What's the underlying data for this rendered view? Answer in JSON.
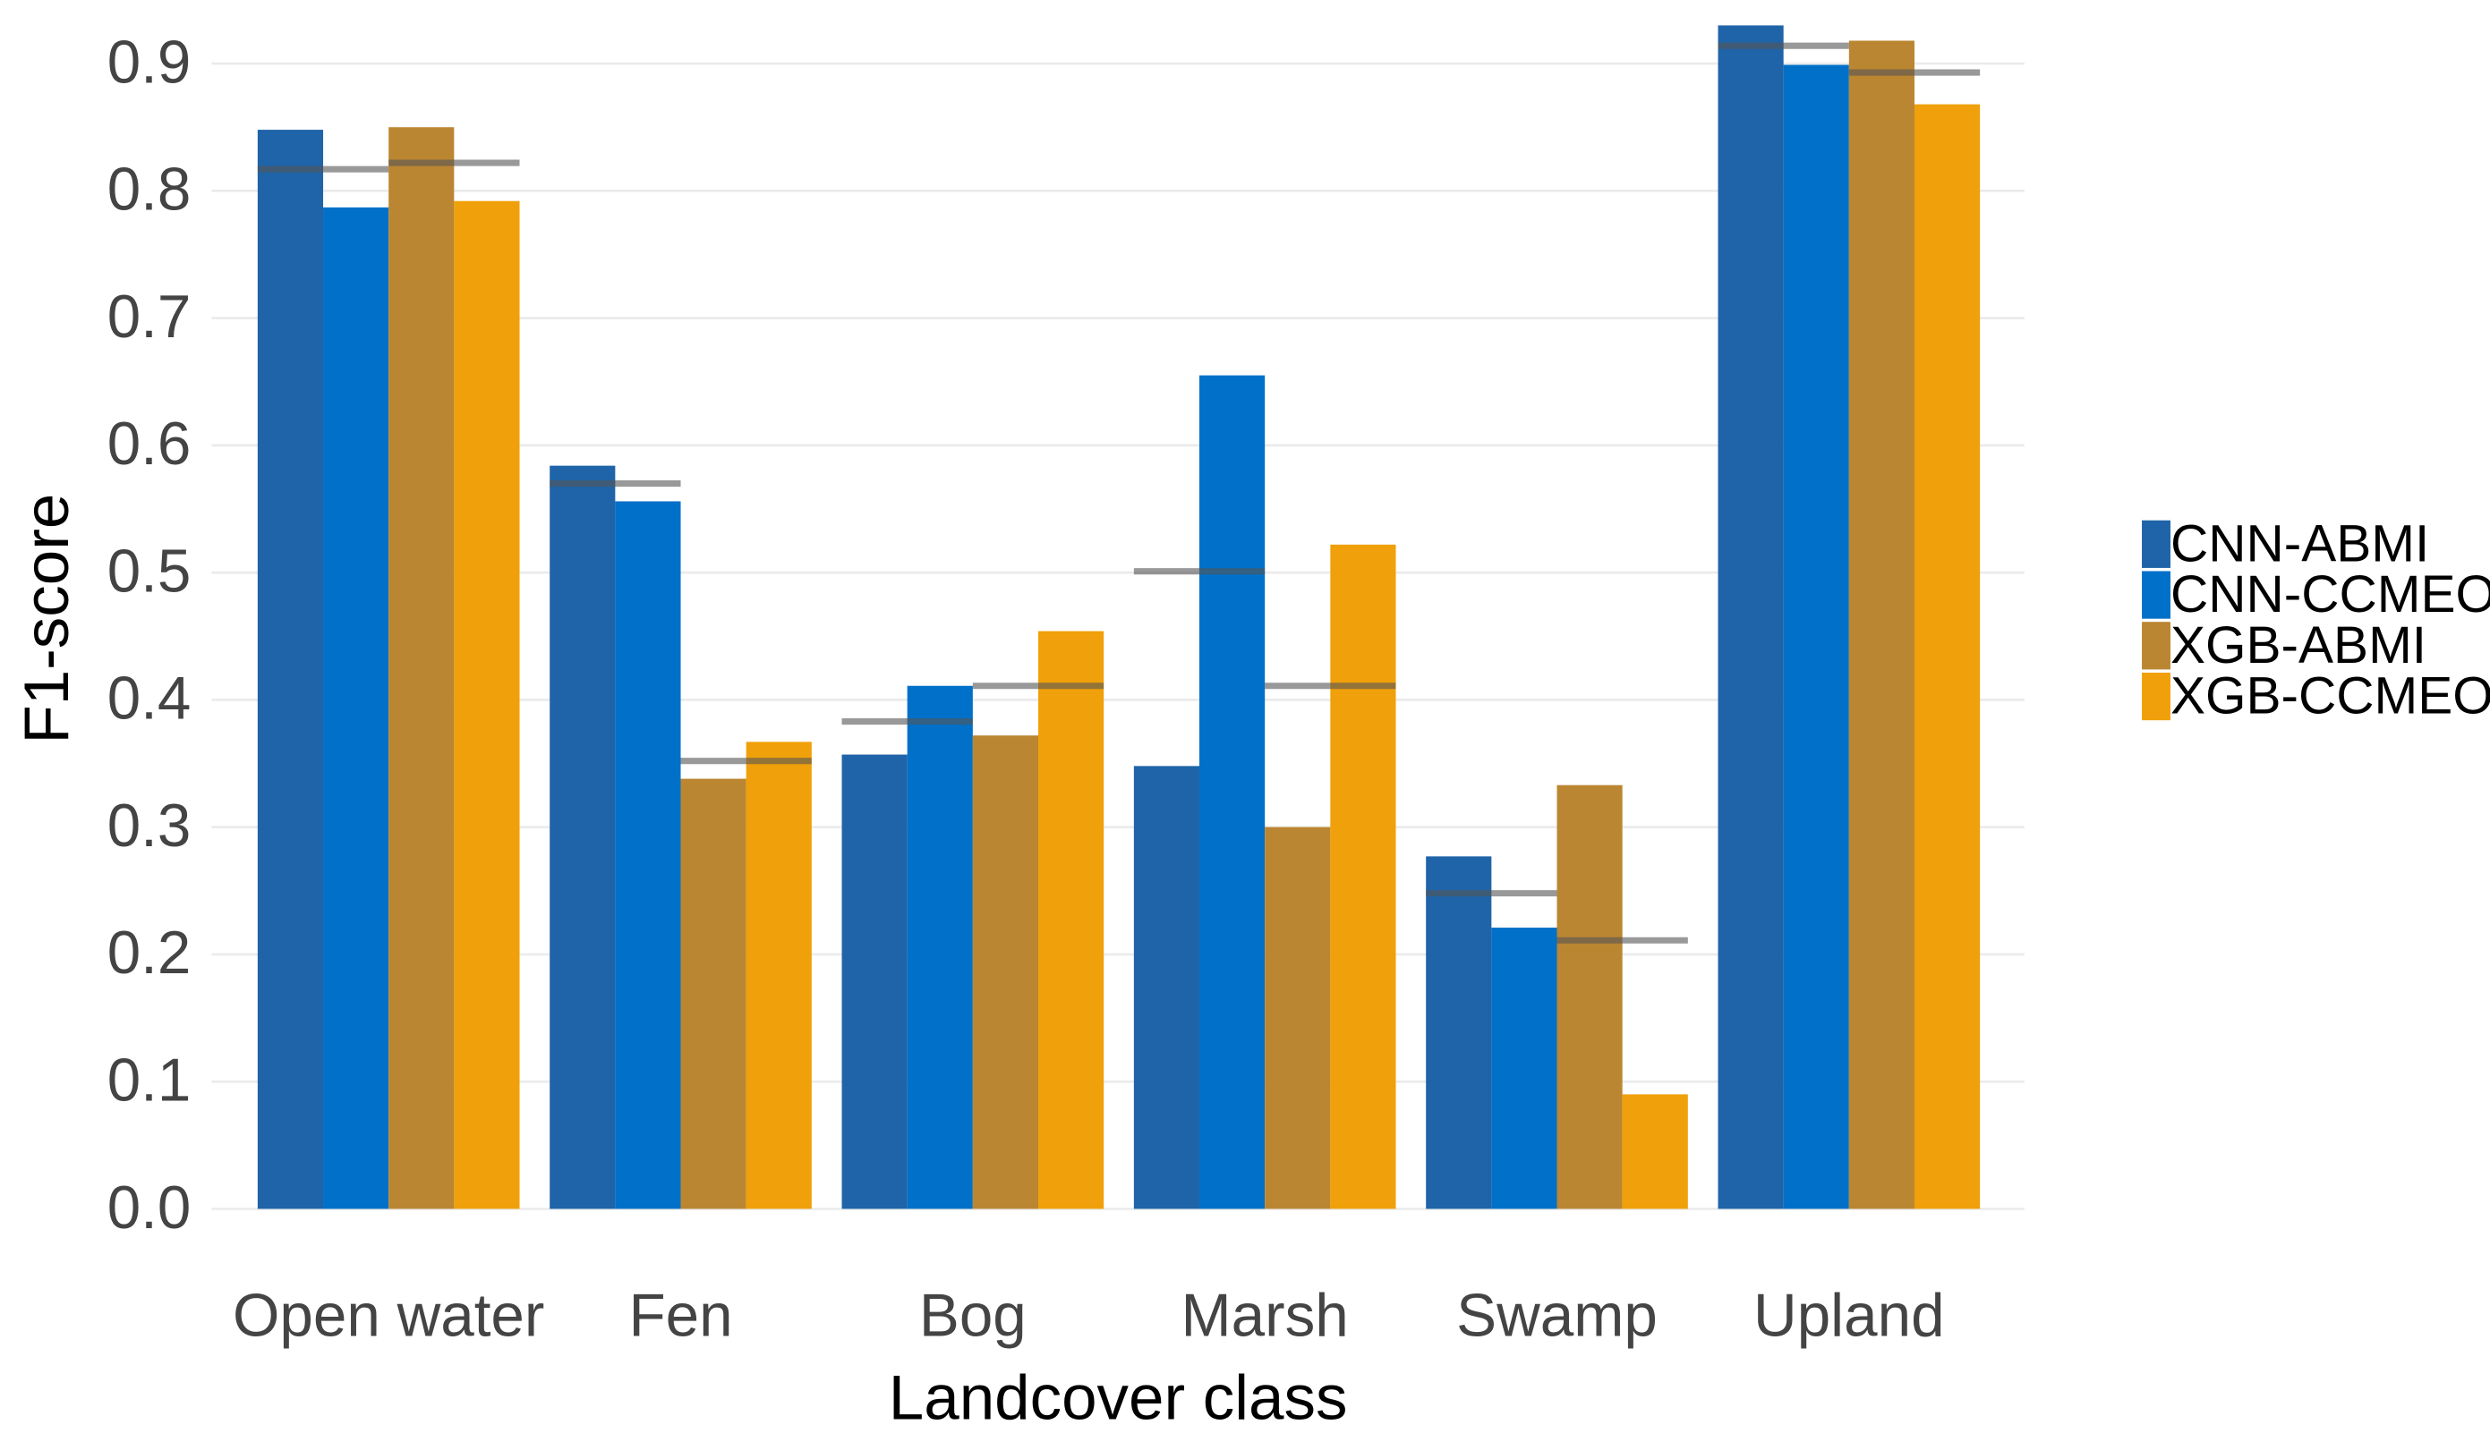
{
  "chart_data": {
    "type": "bar",
    "x_label": "Landcover class",
    "y_label": "F1-score",
    "categories": [
      "Open water",
      "Fen",
      "Bog",
      "Marsh",
      "Swamp",
      "Upland"
    ],
    "series": [
      {
        "name": "CNN-ABMI",
        "color": "#1f64a8",
        "values": [
          0.848,
          0.584,
          0.357,
          0.348,
          0.277,
          0.93
        ]
      },
      {
        "name": "CNN-CCMEO",
        "color": "#0070c8",
        "values": [
          0.787,
          0.556,
          0.411,
          0.655,
          0.221,
          0.899
        ]
      },
      {
        "name": "XGB-ABMI",
        "color": "#bb8632",
        "values": [
          0.85,
          0.338,
          0.372,
          0.3,
          0.333,
          0.918
        ]
      },
      {
        "name": "XGB-CCMEO",
        "color": "#f0a00a",
        "values": [
          0.792,
          0.367,
          0.454,
          0.522,
          0.09,
          0.868
        ]
      }
    ],
    "mean_lines": [
      {
        "color": "#555555",
        "values": [
          0.817,
          0.57,
          0.383,
          0.501,
          0.248,
          0.914
        ]
      },
      {
        "color": "#555555",
        "values": [
          0.822,
          0.352,
          0.411,
          0.411,
          0.211,
          0.893
        ]
      }
    ],
    "ylim": [
      0,
      0.94
    ],
    "yticks": [
      {
        "value": 0,
        "label": "0.0"
      },
      0.1,
      0.2,
      0.3,
      0.4,
      0.5,
      0.6,
      0.7,
      0.8,
      0.9
    ],
    "grid": true,
    "legend": "right"
  }
}
